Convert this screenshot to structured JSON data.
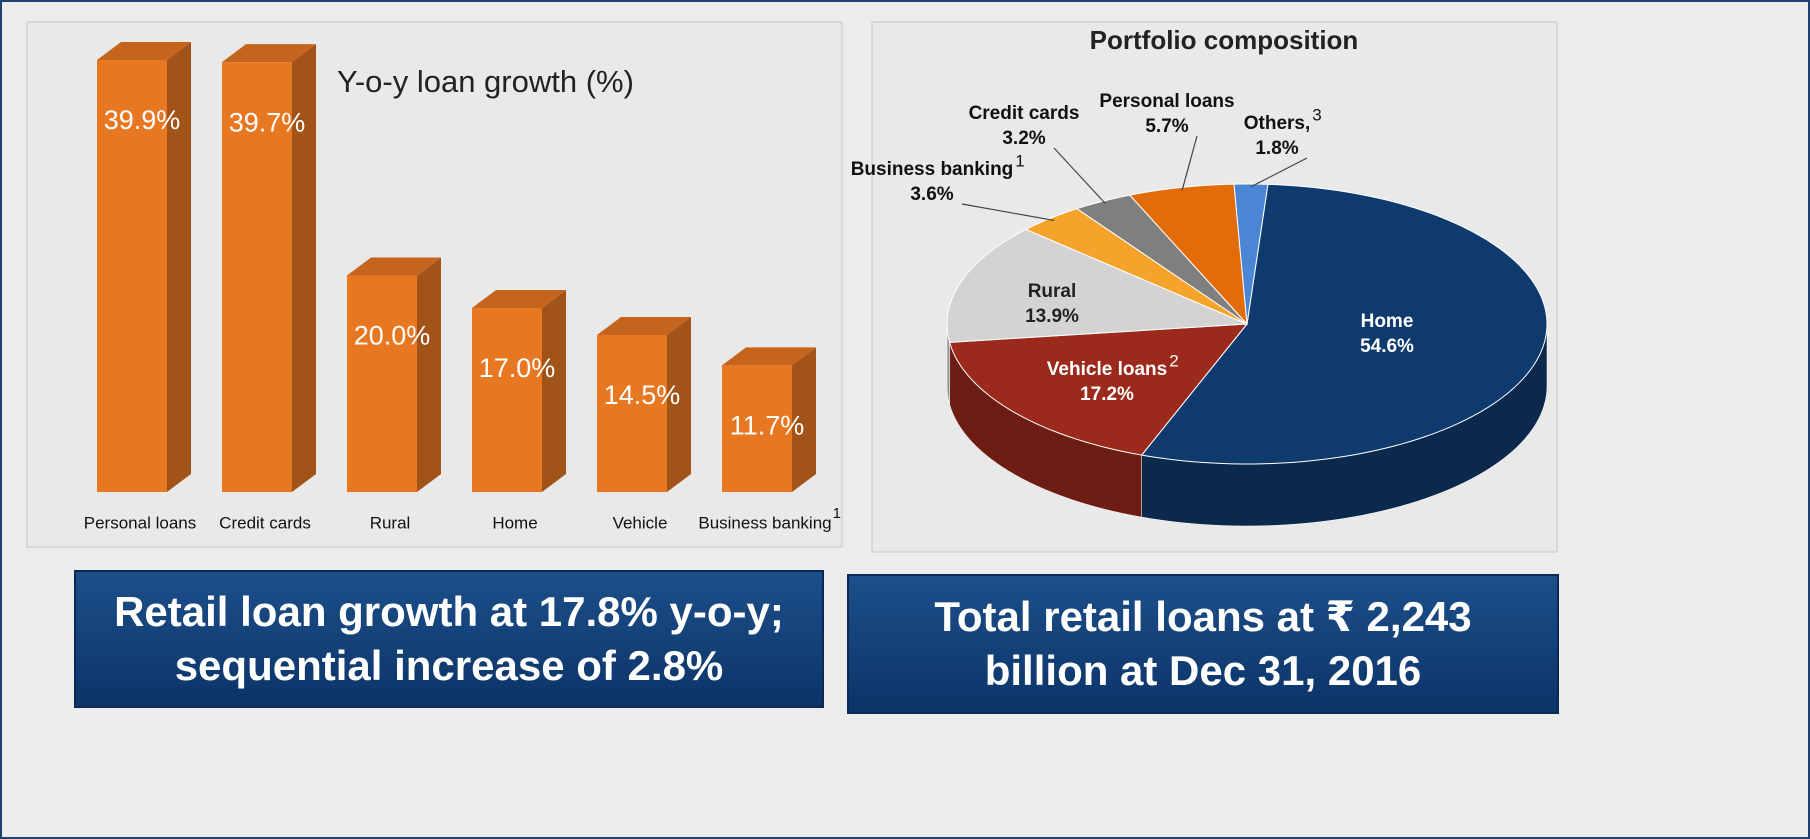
{
  "chart_data": [
    {
      "type": "bar",
      "title": "Y-o-y loan growth (%)",
      "categories": [
        "Personal loans",
        "Credit cards",
        "Rural",
        "Home",
        "Vehicle",
        "Business banking"
      ],
      "category_footnotes": [
        null,
        null,
        null,
        null,
        null,
        "1"
      ],
      "values": [
        39.9,
        39.7,
        20.0,
        17.0,
        14.5,
        11.7
      ],
      "value_labels": [
        "39.9%",
        "39.7%",
        "20.0%",
        "17.0%",
        "14.5%",
        "11.7%"
      ],
      "color": "#e87722"
    },
    {
      "type": "pie",
      "title": "Portfolio composition",
      "categories": [
        "Home",
        "Vehicle loans",
        "Rural",
        "Business banking",
        "Credit cards",
        "Personal loans",
        "Others,"
      ],
      "category_footnotes": [
        null,
        "2",
        null,
        "1",
        null,
        null,
        "3"
      ],
      "values": [
        54.6,
        17.2,
        13.9,
        3.6,
        3.2,
        5.7,
        1.8
      ],
      "value_labels": [
        "54.6%",
        "17.2%",
        "13.9%",
        "3.6%",
        "3.2%",
        "5.7%",
        "1.8%"
      ],
      "colors": [
        "#0f3a6e",
        "#9b2a1c",
        "#d3d3d3",
        "#f5a32a",
        "#7f7f7f",
        "#e36c0a",
        "#4a86d4"
      ]
    }
  ],
  "callouts": [
    "Retail loan growth at 17.8% y-o-y; sequential increase of 2.8%",
    "Total retail loans at ₹ 2,243 billion at Dec 31, 2016"
  ]
}
